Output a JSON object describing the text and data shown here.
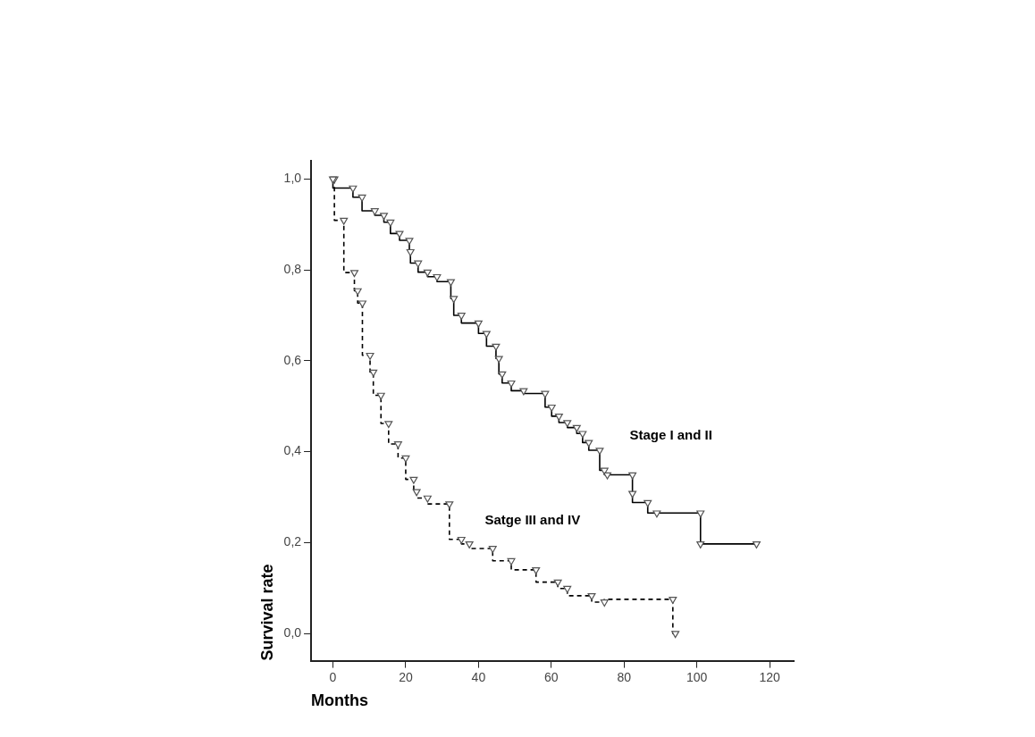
{
  "chart_data": {
    "type": "step",
    "xlabel": "Months",
    "ylabel": "Survival rate",
    "xlim": [
      -6,
      126.6
    ],
    "ylim": [
      -0.06,
      1.04
    ],
    "xticks": [
      0,
      20,
      40,
      60,
      80,
      100,
      120
    ],
    "yticks": [
      {
        "value": 0,
        "label": "0,0"
      },
      {
        "value": 0.2,
        "label": "0,2"
      },
      {
        "value": 0.4,
        "label": "0,4"
      },
      {
        "value": 0.6,
        "label": "0,6"
      },
      {
        "value": 0.8,
        "label": "0,8"
      },
      {
        "value": 1,
        "label": "1,0"
      }
    ],
    "grid": false,
    "legend": false,
    "marker": "triangle",
    "series": [
      {
        "name": "Stage I and II",
        "color": "#000000",
        "line_style": "solid",
        "x": [
          0,
          5.5,
          8,
          11.5,
          14,
          15.8,
          18.3,
          21,
          21.3,
          23.4,
          26,
          28.6,
          32.4,
          33.2,
          35.3,
          40,
          42.2,
          44.8,
          45.6,
          46.5,
          49,
          52.4,
          58.3,
          60.1,
          62.1,
          64.4,
          67,
          68.6,
          70.3,
          73.3,
          74.6,
          75.4,
          82.3,
          82.3,
          86.5,
          89,
          101,
          101,
          116.4
        ],
        "values": [
          1,
          0.98,
          0.96,
          0.93,
          0.92,
          0.905,
          0.88,
          0.865,
          0.84,
          0.815,
          0.795,
          0.785,
          0.774,
          0.737,
          0.7,
          0.683,
          0.66,
          0.632,
          0.605,
          0.571,
          0.551,
          0.534,
          0.528,
          0.498,
          0.478,
          0.464,
          0.453,
          0.44,
          0.42,
          0.403,
          0.359,
          0.349,
          0.349,
          0.308,
          0.288,
          0.265,
          0.265,
          0.197,
          0.197
        ]
      },
      {
        "name": "Satge III and IV",
        "color": "#000000",
        "line_style": "dashed",
        "x": [
          0.4,
          3,
          5.9,
          6.8,
          8.1,
          10.2,
          11.1,
          13.2,
          15.3,
          17.9,
          20,
          22.2,
          23,
          26,
          32,
          35.3,
          37.5,
          43.9,
          49,
          55.8,
          61.8,
          64.4,
          71.1,
          74.6,
          93.4,
          94.1
        ],
        "values": [
          1,
          0.909,
          0.794,
          0.754,
          0.727,
          0.612,
          0.575,
          0.524,
          0.462,
          0.417,
          0.386,
          0.339,
          0.312,
          0.298,
          0.285,
          0.207,
          0.197,
          0.187,
          0.16,
          0.14,
          0.113,
          0.099,
          0.083,
          0.069,
          0.075,
          0
        ]
      }
    ]
  }
}
